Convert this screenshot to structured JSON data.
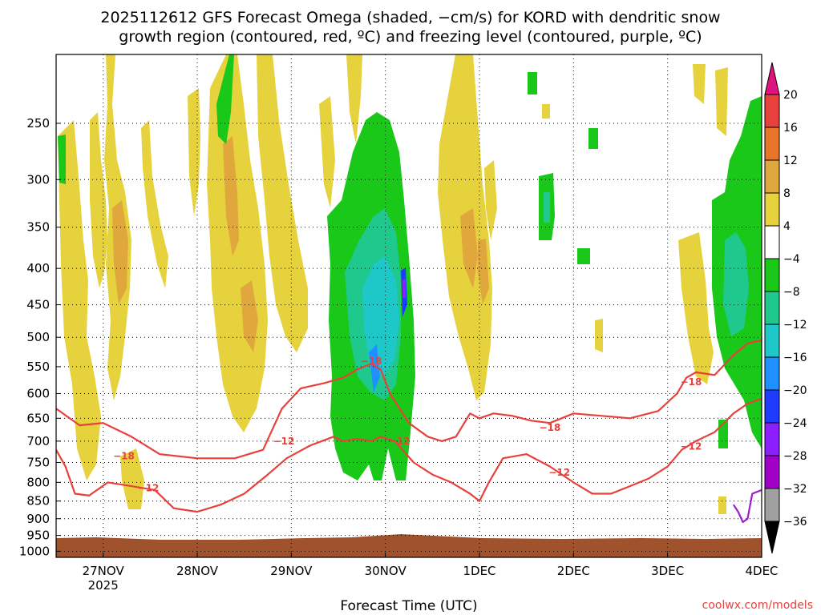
{
  "title_line1": "2025112612 GFS Forecast Omega (shaded, −cm/s) for KORD with dendritic snow",
  "title_line2": "growth region (contoured, red, ºC) and freezing level (contoured, purple, ºC)",
  "credit": "coolwx.com/models",
  "colors": {
    "accent_red": "#e8413c",
    "freezing_purple": "#9b1fd1",
    "ground_brown": "#a0522d"
  },
  "chart_data": {
    "type": "heatmap",
    "xlabel": "Forecast Time (UTC)",
    "ylabel": "",
    "x_ticks": [
      {
        "label": "27NOV",
        "sublabel": "2025",
        "day": 1
      },
      {
        "label": "28NOV",
        "sublabel": "",
        "day": 2
      },
      {
        "label": "29NOV",
        "sublabel": "",
        "day": 3
      },
      {
        "label": "30NOV",
        "sublabel": "",
        "day": 4
      },
      {
        "label": "1DEC",
        "sublabel": "",
        "day": 5
      },
      {
        "label": "2DEC",
        "sublabel": "",
        "day": 6
      },
      {
        "label": "3DEC",
        "sublabel": "",
        "day": 7
      },
      {
        "label": "4DEC",
        "sublabel": "",
        "day": 8
      }
    ],
    "x_range_days": [
      0.5,
      8.0
    ],
    "y_ticks": [
      250,
      300,
      350,
      400,
      450,
      500,
      550,
      600,
      650,
      700,
      750,
      800,
      850,
      900,
      950,
      1000
    ],
    "y_range_hpa": [
      200,
      1020
    ],
    "y_scale": "log-pressure",
    "grid": true,
    "colorbar": {
      "labels": [
        "20",
        "16",
        "12",
        "8",
        "4",
        "−4",
        "−8",
        "−12",
        "−16",
        "−20",
        "−24",
        "−28",
        "−32",
        "−36"
      ],
      "colors": [
        "#e0127e",
        "#e8413c",
        "#e87528",
        "#e0a83c",
        "#e6d23c",
        "#ffffff",
        "#19c819",
        "#1fc88c",
        "#1ec8c8",
        "#1e90ff",
        "#1e3cff",
        "#8c1eff",
        "#a000c8",
        "#a0a0a0",
        "#000000"
      ]
    },
    "contour_labels": [
      {
        "text": "−18",
        "day": 3.85,
        "hpa": 540
      },
      {
        "text": "−12",
        "day": 2.92,
        "hpa": 700
      },
      {
        "text": "−12",
        "day": 4.15,
        "hpa": 700
      },
      {
        "text": "−18",
        "day": 1.22,
        "hpa": 735
      },
      {
        "text": "−12",
        "day": 1.48,
        "hpa": 815
      },
      {
        "text": "−18",
        "day": 5.75,
        "hpa": 670
      },
      {
        "text": "−12",
        "day": 5.85,
        "hpa": 775
      },
      {
        "text": "−18",
        "day": 7.25,
        "hpa": 578
      },
      {
        "text": "−12",
        "day": 7.25,
        "hpa": 712
      }
    ],
    "series": [
      {
        "name": "dgz_-18C",
        "color": "#e8413c",
        "day": [
          0.5,
          0.75,
          1.0,
          1.3,
          1.6,
          2.0,
          2.4,
          2.7,
          2.9,
          3.1,
          3.35,
          3.55,
          3.7,
          3.85,
          3.95,
          4.05,
          4.25,
          4.45,
          4.6,
          4.75,
          4.9,
          5.0,
          5.15,
          5.35,
          5.55,
          5.75,
          6.0,
          6.3,
          6.6,
          6.9,
          7.1,
          7.2,
          7.3,
          7.5,
          7.7,
          7.85,
          8.0
        ],
        "hpa": [
          630,
          665,
          660,
          690,
          730,
          740,
          740,
          720,
          630,
          590,
          580,
          570,
          555,
          545,
          555,
          600,
          660,
          690,
          700,
          690,
          640,
          650,
          640,
          645,
          655,
          660,
          640,
          645,
          650,
          635,
          600,
          570,
          560,
          565,
          530,
          510,
          505
        ]
      },
      {
        "name": "dgz_-12C",
        "color": "#e8413c",
        "day": [
          0.5,
          0.6,
          0.7,
          0.85,
          1.05,
          1.3,
          1.55,
          1.75,
          2.0,
          2.25,
          2.5,
          2.75,
          2.95,
          3.2,
          3.45,
          3.55,
          3.7,
          3.85,
          3.95,
          4.1,
          4.3,
          4.5,
          4.7,
          4.9,
          5.0,
          5.1,
          5.25,
          5.5,
          5.75,
          6.0,
          6.2,
          6.4,
          6.6,
          6.8,
          7.0,
          7.15,
          7.3,
          7.5,
          7.7,
          7.85,
          8.0
        ],
        "hpa": [
          720,
          760,
          830,
          835,
          800,
          810,
          820,
          870,
          880,
          860,
          830,
          780,
          740,
          710,
          690,
          700,
          695,
          700,
          690,
          700,
          750,
          780,
          800,
          830,
          850,
          800,
          740,
          730,
          760,
          800,
          830,
          830,
          810,
          790,
          760,
          720,
          700,
          680,
          640,
          620,
          610
        ]
      },
      {
        "name": "freezing_level_0C",
        "color": "#9b1fd1",
        "day": [
          7.7,
          7.75,
          7.8,
          7.85,
          7.9,
          8.0
        ],
        "hpa": [
          860,
          880,
          910,
          900,
          830,
          820
        ]
      }
    ]
  }
}
